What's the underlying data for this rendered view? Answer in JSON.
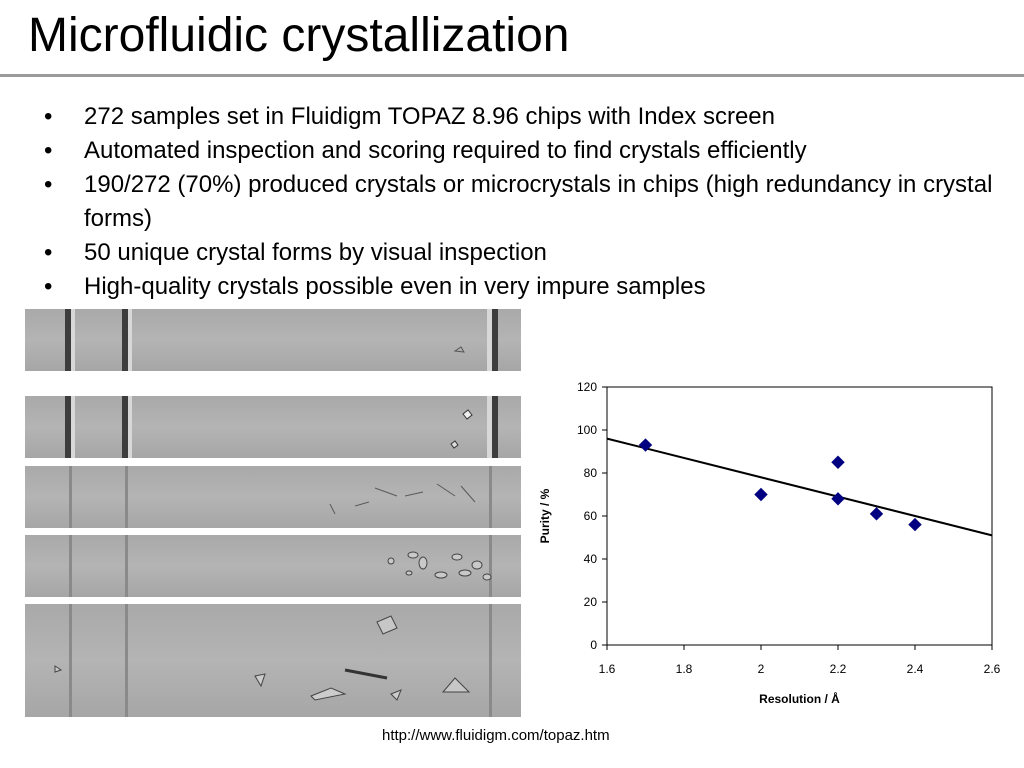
{
  "slide": {
    "title": "Microfluidic crystallization",
    "bullets": [
      "272 samples set in Fluidigm TOPAZ 8.96 chips with Index screen",
      "Automated inspection and scoring required to find crystals efficiently",
      "190/272 (70%) produced crystals or microcrystals in chips (high redundancy in crystal forms)",
      "50 unique crystal forms by visual inspection",
      "High-quality crystals possible even in very impure samples"
    ],
    "source_url": "http://www.fluidigm.com/topaz.htm"
  },
  "colors": {
    "marker": "#000080",
    "rule": "#9b9b9b",
    "trendline": "#000000"
  },
  "chart_data": {
    "type": "scatter",
    "title": "",
    "xlabel": "Resolution / Å",
    "ylabel": "Purity / %",
    "xlim": [
      1.6,
      2.6
    ],
    "ylim": [
      0,
      120
    ],
    "xticks": [
      1.6,
      1.8,
      2.0,
      2.2,
      2.4,
      2.6
    ],
    "xtick_labels": [
      "1.6",
      "1.8",
      "2",
      "2.2",
      "2.4",
      "2.6"
    ],
    "yticks": [
      0,
      20,
      40,
      60,
      80,
      100,
      120
    ],
    "ytick_labels": [
      "0",
      "20",
      "40",
      "60",
      "80",
      "100",
      "120"
    ],
    "grid": false,
    "legend": "none",
    "marker": "diamond",
    "points": [
      {
        "x": 1.7,
        "y": 93
      },
      {
        "x": 2.0,
        "y": 70
      },
      {
        "x": 2.2,
        "y": 85
      },
      {
        "x": 2.2,
        "y": 68
      },
      {
        "x": 2.3,
        "y": 61
      },
      {
        "x": 2.4,
        "y": 56
      }
    ],
    "trendline": {
      "type": "linear",
      "x": [
        1.6,
        2.6
      ],
      "y": [
        96,
        51
      ]
    }
  }
}
